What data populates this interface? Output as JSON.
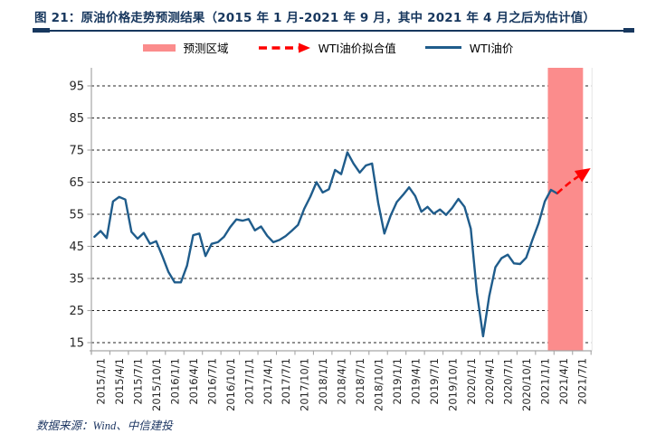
{
  "figure": {
    "title": "图 21：原油价格走势预测结果（2015 年 1 月-2021 年 9 月，其中 2021 年 4 月之后为估计值）",
    "source_note": "数据来源：Wind、中信建投"
  },
  "legend": {
    "items": [
      {
        "label": "预测区域",
        "type": "band-swatch",
        "color": "#FB8C8C"
      },
      {
        "label": "WTI油价拟合值",
        "type": "dashed-arrow",
        "color": "#FF0000"
      },
      {
        "label": "WTI油价",
        "type": "solid-line",
        "color": "#1F5C8B"
      }
    ]
  },
  "chart_data": {
    "type": "line",
    "title": "原油价格走势预测结果",
    "x_start": "2015/1",
    "x_frequency": "monthly",
    "x_tick_labels": [
      "2015/1/1",
      "2015/4/1",
      "2015/7/1",
      "2015/10/1",
      "2016/1/1",
      "2016/4/1",
      "2016/7/1",
      "2016/10/1",
      "2017/1/1",
      "2017/4/1",
      "2017/7/1",
      "2017/10/1",
      "2018/1/1",
      "2018/4/1",
      "2018/7/1",
      "2018/10/1",
      "2019/1/1",
      "2019/4/1",
      "2019/7/1",
      "2019/10/1",
      "2020/1/1",
      "2020/4/1",
      "2020/7/1",
      "2020/10/1",
      "2021/1/1",
      "2021/4/1",
      "2021/7/1"
    ],
    "y_ticks": [
      15,
      25,
      35,
      45,
      55,
      65,
      75,
      85,
      95
    ],
    "ylim": [
      12.5,
      100.5
    ],
    "grid": "horizontal-dashed",
    "legend_position": "top-center",
    "series": [
      {
        "name": "WTI油价",
        "color": "#1F5C8B",
        "style": "solid",
        "start_month_index": 0,
        "values": [
          48.0,
          49.8,
          47.6,
          59.0,
          60.4,
          59.6,
          49.5,
          47.4,
          49.2,
          45.8,
          46.6,
          42.0,
          37.0,
          33.8,
          33.8,
          39.0,
          48.5,
          49.0,
          42.0,
          45.8,
          46.3,
          48.0,
          51.0,
          53.4,
          53.0,
          53.5,
          50.0,
          51.2,
          48.3,
          46.3,
          47.0,
          48.2,
          49.9,
          51.7,
          56.7,
          60.5,
          65.0,
          61.8,
          62.8,
          68.8,
          67.5,
          74.3,
          70.8,
          68.0,
          70.2,
          70.8,
          58.5,
          49.0,
          54.5,
          58.8,
          61.0,
          63.4,
          60.7,
          55.8,
          57.3,
          55.2,
          56.5,
          54.8,
          57.0,
          59.8,
          57.3,
          50.5,
          30.5,
          17.0,
          29.5,
          38.5,
          41.3,
          42.4,
          39.7,
          39.5,
          41.5,
          47.0,
          52.2,
          59.0,
          62.6,
          61.5
        ]
      },
      {
        "name": "WTI油价拟合值",
        "color": "#FF0000",
        "style": "dashed-arrow",
        "start_month_index": 75,
        "values": [
          61.5,
          63.2,
          64.8,
          66.2,
          67.5,
          68.8
        ]
      }
    ],
    "prediction_band": {
      "name": "预测区域",
      "color": "#FB8C8C",
      "month_range": [
        73.5,
        79.2
      ],
      "covers": "2021/3-2021/9"
    }
  },
  "colors": {
    "title": "#17375E",
    "divider": "#17375E",
    "footer": "#1F3864",
    "axis_line": "#A6A6A6",
    "tick_text": "#262626",
    "grid": "#262626",
    "plot_right_border": "#E0E0E0"
  }
}
